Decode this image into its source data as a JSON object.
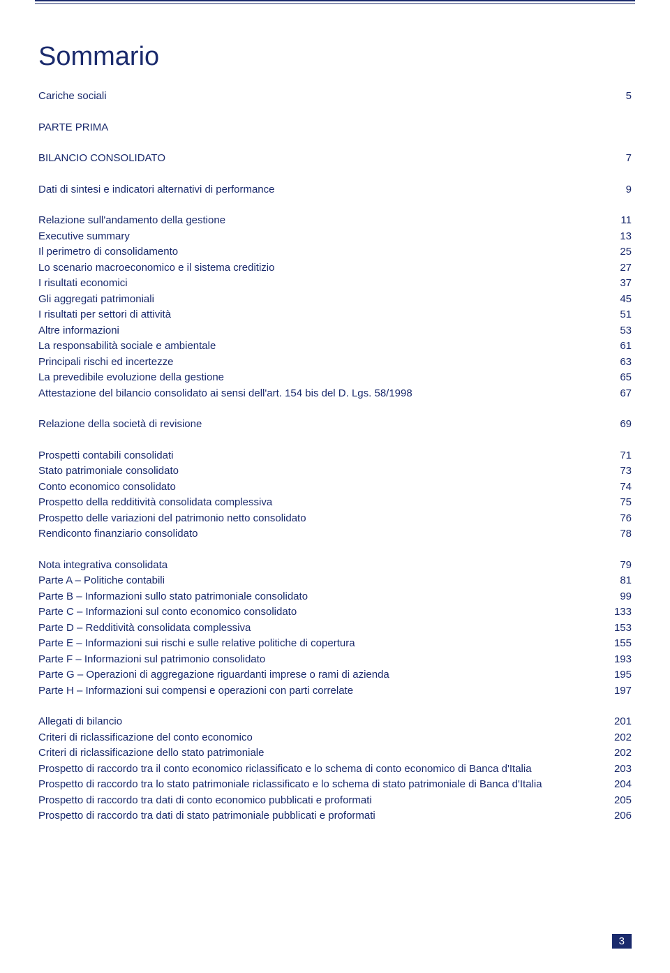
{
  "title": "Sommario",
  "sections": [
    {
      "entries": [
        {
          "label": "Cariche sociali",
          "page": "5"
        }
      ]
    },
    {
      "heading": "PARTE PRIMA",
      "entries": [
        {
          "label": "BILANCIO CONSOLIDATO",
          "page": "7"
        }
      ]
    },
    {
      "entries": [
        {
          "label": "Dati di sintesi e indicatori alternativi di performance",
          "page": "9"
        }
      ]
    },
    {
      "entries": [
        {
          "label": "Relazione sull'andamento della gestione",
          "page": "11"
        },
        {
          "label": "Executive summary",
          "page": "13"
        },
        {
          "label": "Il perimetro di consolidamento",
          "page": "25"
        },
        {
          "label": "Lo scenario macroeconomico e il sistema creditizio",
          "page": "27"
        },
        {
          "label": "I risultati economici",
          "page": "37"
        },
        {
          "label": "Gli aggregati patrimoniali",
          "page": "45"
        },
        {
          "label": "I risultati per settori di attività",
          "page": "51"
        },
        {
          "label": "Altre informazioni",
          "page": "53"
        },
        {
          "label": "La responsabilità sociale e ambientale",
          "page": "61"
        },
        {
          "label": "Principali rischi ed incertezze",
          "page": "63"
        },
        {
          "label": "La prevedibile evoluzione della gestione",
          "page": "65"
        },
        {
          "label": "Attestazione del bilancio consolidato ai sensi dell'art. 154 bis del D. Lgs. 58/1998",
          "page": "67"
        }
      ]
    },
    {
      "entries": [
        {
          "label": "Relazione della società di revisione",
          "page": "69"
        }
      ]
    },
    {
      "entries": [
        {
          "label": "Prospetti contabili consolidati",
          "page": "71"
        },
        {
          "label": "Stato patrimoniale consolidato",
          "page": "73"
        },
        {
          "label": "Conto economico consolidato",
          "page": "74"
        },
        {
          "label": "Prospetto della redditività consolidata complessiva",
          "page": "75"
        },
        {
          "label": "Prospetto delle variazioni del patrimonio netto consolidato",
          "page": "76"
        },
        {
          "label": "Rendiconto finanziario consolidato",
          "page": "78"
        }
      ]
    },
    {
      "entries": [
        {
          "label": "Nota integrativa consolidata",
          "page": "79"
        },
        {
          "label": "Parte A – Politiche contabili",
          "page": "81"
        },
        {
          "label": "Parte B – Informazioni sullo stato patrimoniale consolidato",
          "page": "99"
        },
        {
          "label": "Parte C – Informazioni sul conto economico consolidato",
          "page": "133"
        },
        {
          "label": "Parte D – Redditività consolidata complessiva",
          "page": "153"
        },
        {
          "label": "Parte E – Informazioni sui rischi e sulle relative politiche di copertura",
          "page": "155"
        },
        {
          "label": "Parte F – Informazioni sul patrimonio consolidato",
          "page": "193"
        },
        {
          "label": "Parte G – Operazioni di aggregazione riguardanti imprese o rami di azienda",
          "page": "195"
        },
        {
          "label": "Parte H – Informazioni sui compensi e operazioni con parti correlate",
          "page": "197"
        }
      ]
    },
    {
      "entries": [
        {
          "label": "Allegati di bilancio",
          "page": "201"
        },
        {
          "label": "Criteri di riclassificazione del conto economico",
          "page": "202"
        },
        {
          "label": "Criteri di riclassificazione dello stato patrimoniale",
          "page": "202"
        },
        {
          "label": "Prospetto di raccordo tra il conto economico riclassificato e lo schema di conto economico di Banca d'Italia",
          "page": "203"
        },
        {
          "label": "Prospetto di raccordo tra lo stato patrimoniale riclassificato e lo schema di stato patrimoniale di Banca d'Italia",
          "page": "204"
        },
        {
          "label": "Prospetto di raccordo tra dati di conto economico pubblicati e proformati",
          "page": "205"
        },
        {
          "label": "Prospetto di raccordo tra dati di stato patrimoniale pubblicati e proformati",
          "page": "206"
        }
      ]
    }
  ],
  "page_number": "3",
  "colors": {
    "primary": "#1a2a6c",
    "background": "#ffffff",
    "page_box_text": "#ffffff"
  }
}
